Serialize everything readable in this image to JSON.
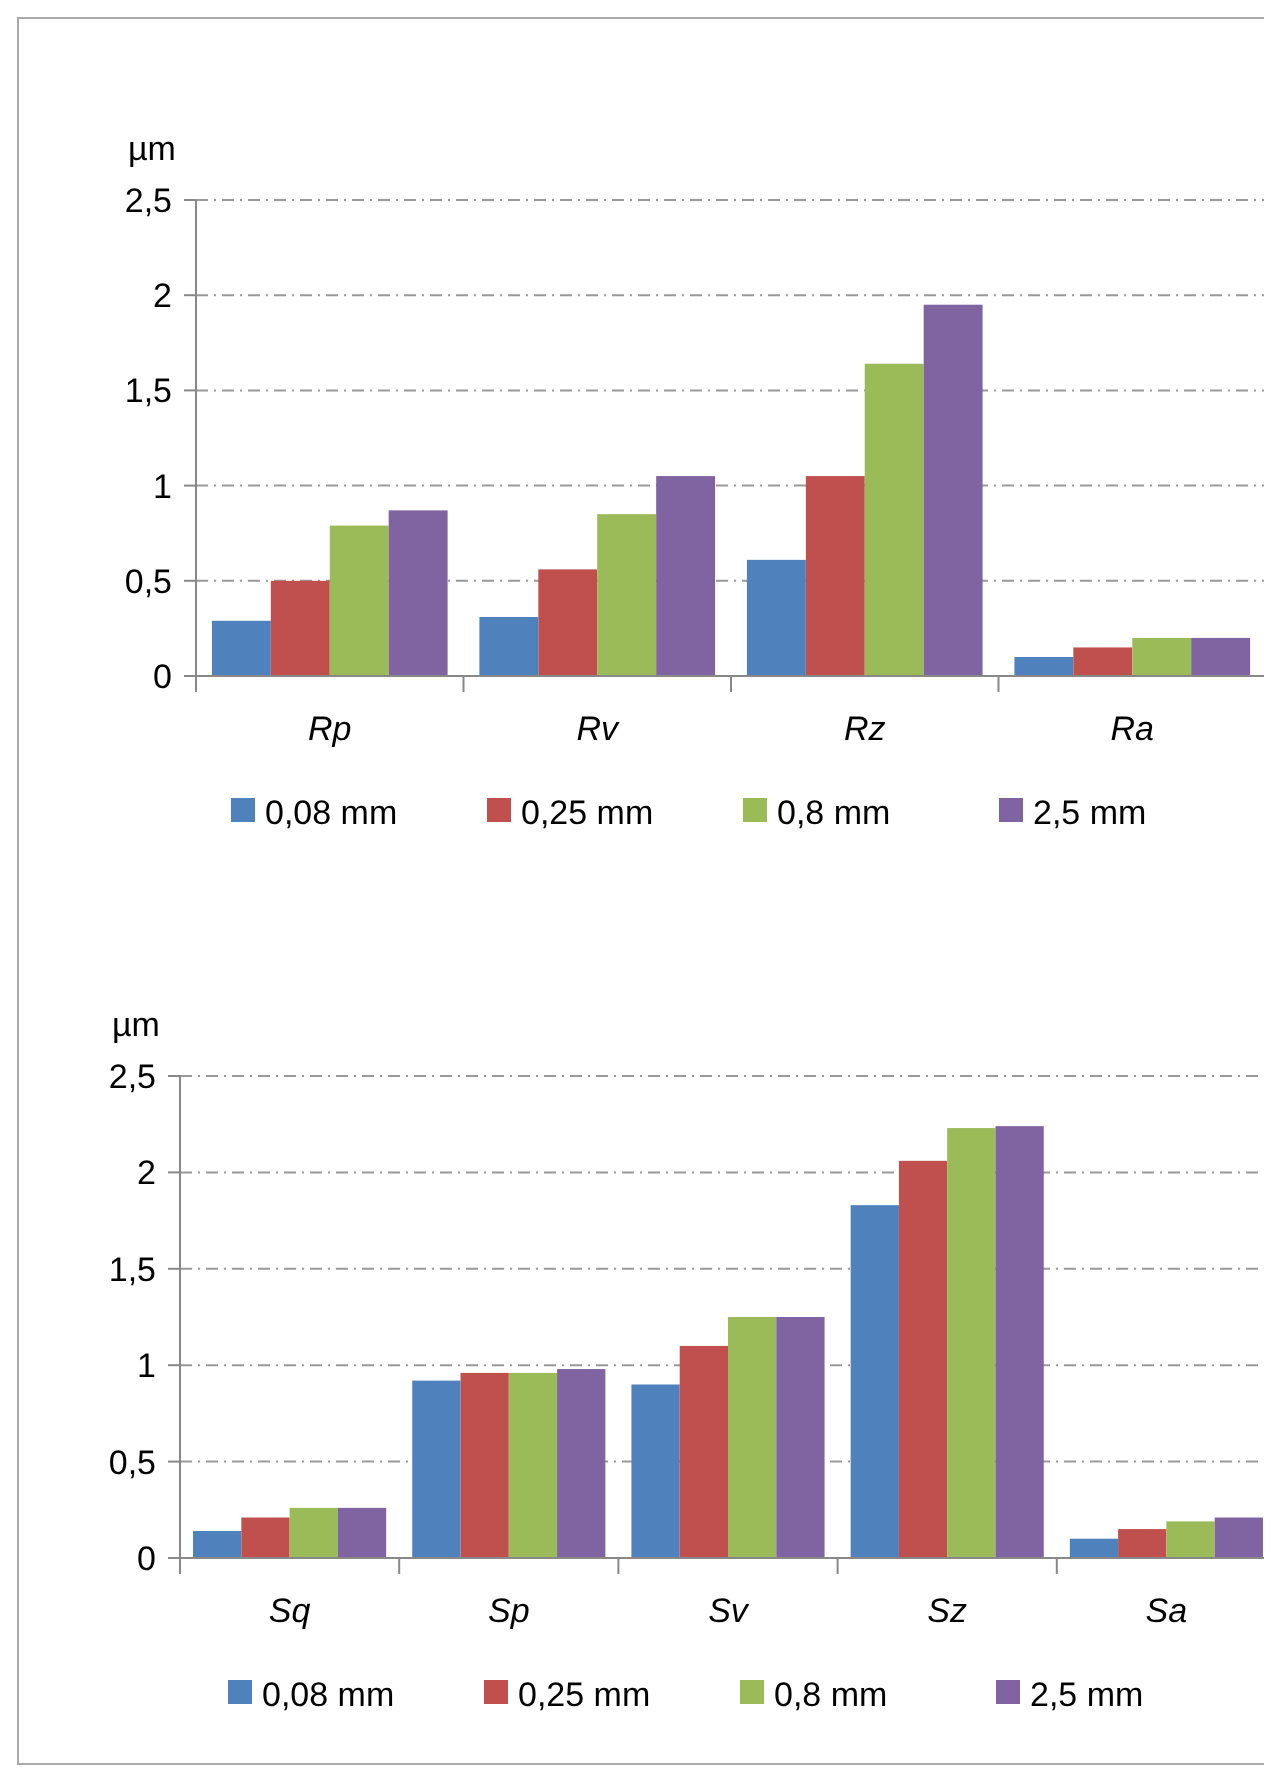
{
  "chart_data": [
    {
      "type": "bar",
      "ylabel": "µm",
      "categories": [
        "Rp",
        "Rv",
        "Rz",
        "Ra"
      ],
      "series": [
        {
          "name": "0,08 mm",
          "color": "#4f81bd",
          "values": [
            0.29,
            0.31,
            0.61,
            0.1
          ]
        },
        {
          "name": "0,25 mm",
          "color": "#c0504d",
          "values": [
            0.5,
            0.56,
            1.05,
            0.15
          ]
        },
        {
          "name": "0,8 mm",
          "color": "#9bbb59",
          "values": [
            0.79,
            0.85,
            1.64,
            0.2
          ]
        },
        {
          "name": "2,5 mm",
          "color": "#8064a2",
          "values": [
            0.87,
            1.05,
            1.95,
            0.2
          ]
        }
      ],
      "ylim": [
        0,
        2.5
      ],
      "yticks": [
        0,
        {
          "value": 0.5,
          "label": "0,5"
        },
        1,
        {
          "value": 1.5,
          "label": "1,5"
        },
        2,
        {
          "value": 2.5,
          "label": "2,5"
        }
      ],
      "grid": "y",
      "legend": "bottom"
    },
    {
      "type": "bar",
      "ylabel": "µm",
      "categories": [
        "Sq",
        "Sp",
        "Sv",
        "Sz",
        "Sa"
      ],
      "series": [
        {
          "name": "0,08 mm",
          "color": "#4f81bd",
          "values": [
            0.14,
            0.92,
            0.9,
            1.83,
            0.1
          ]
        },
        {
          "name": "0,25 mm",
          "color": "#c0504d",
          "values": [
            0.21,
            0.96,
            1.1,
            2.06,
            0.15
          ]
        },
        {
          "name": "0,8 mm",
          "color": "#9bbb59",
          "values": [
            0.26,
            0.96,
            1.25,
            2.23,
            0.19
          ]
        },
        {
          "name": "2,5 mm",
          "color": "#8064a2",
          "values": [
            0.26,
            0.98,
            1.25,
            2.24,
            0.21
          ]
        }
      ],
      "ylim": [
        0,
        2.5
      ],
      "yticks": [
        0,
        {
          "value": 0.5,
          "label": "0,5"
        },
        1,
        {
          "value": 1.5,
          "label": "1,5"
        },
        2,
        {
          "value": 2.5,
          "label": "2,5"
        }
      ],
      "grid": "y",
      "legend": "bottom"
    }
  ]
}
